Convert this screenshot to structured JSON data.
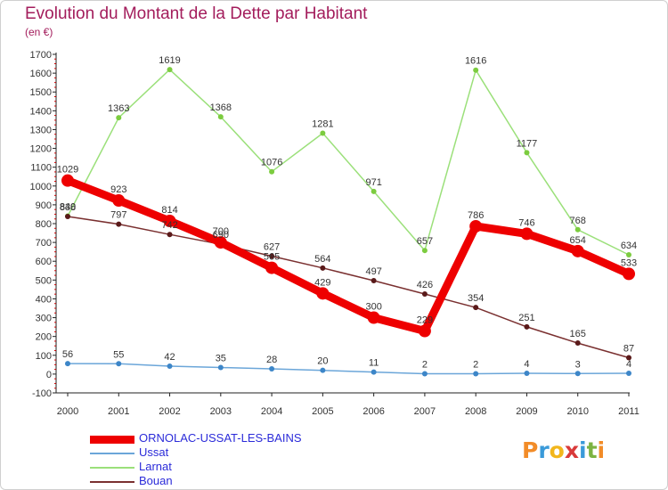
{
  "title": "Evolution du Montant de la Dette par Habitant",
  "subtitle": "(en €)",
  "logo": {
    "text": "Proxiti",
    "colors": [
      "#f28c28",
      "#3a9ad9",
      "#f2b61c",
      "#d93a3a",
      "#3a9ad9",
      "#7cb342",
      "#f28c28"
    ]
  },
  "colors": {
    "title": "#a31d5c",
    "axis": "#222222"
  },
  "chart_data": {
    "type": "line",
    "title": "Evolution du Montant de la Dette par Habitant",
    "subtitle": "(en €)",
    "xlabel": "",
    "ylabel": "",
    "categories": [
      "2000",
      "2001",
      "2002",
      "2003",
      "2004",
      "2005",
      "2006",
      "2007",
      "2008",
      "2009",
      "2010",
      "2011"
    ],
    "ylim": [
      -100,
      1700
    ],
    "yticks": [
      "-100",
      "0",
      "100",
      "200",
      "300",
      "400",
      "500",
      "600",
      "700",
      "800",
      "900",
      "1000",
      "1100",
      "1200",
      "1300",
      "1400",
      "1500",
      "1600",
      "1700"
    ],
    "grid": false,
    "legend": "bottom-left",
    "series": [
      {
        "name": "ORNOLAC-USSAT-LES-BAINS",
        "color": "#ee0000",
        "values": [
          1029,
          923,
          814,
          700,
          565,
          429,
          300,
          229,
          786,
          746,
          654,
          533
        ]
      },
      {
        "name": "Ussat",
        "color": "#6ba6d9",
        "values": [
          56,
          55,
          42,
          35,
          28,
          20,
          11,
          2,
          2,
          4,
          3,
          4
        ]
      },
      {
        "name": "Larnat",
        "color": "#9be07a",
        "values": [
          840,
          1363,
          1619,
          1368,
          1076,
          1281,
          971,
          657,
          1616,
          1177,
          768,
          634
        ]
      },
      {
        "name": "Bouan",
        "color": "#7a3030",
        "values": [
          838,
          797,
          742,
          690,
          627,
          564,
          497,
          426,
          354,
          251,
          165,
          87
        ]
      }
    ]
  },
  "legend": [
    {
      "label": "ORNOLAC-USSAT-LES-BAINS",
      "color": "#ee0000",
      "text_color": "#2b2bd9"
    },
    {
      "label": "Ussat",
      "color": "#6ba6d9",
      "text_color": "#2b2bd9"
    },
    {
      "label": "Larnat",
      "color": "#9be07a",
      "text_color": "#2b2bd9"
    },
    {
      "label": "Bouan",
      "color": "#7a3030",
      "text_color": "#2b2bd9"
    }
  ]
}
